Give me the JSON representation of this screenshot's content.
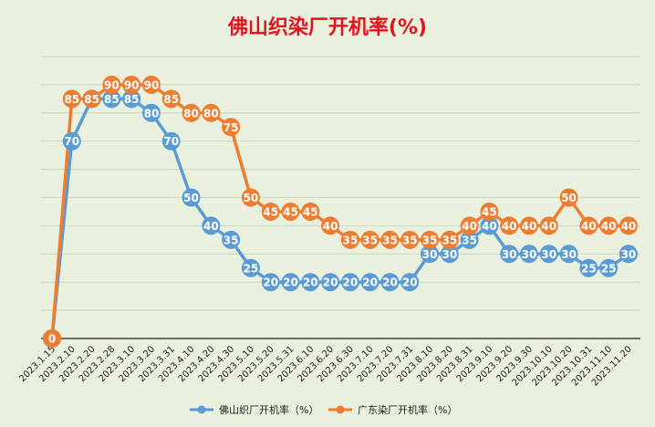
{
  "chart_data": {
    "type": "line",
    "title": "佛山织染厂开机率(%)",
    "xlabel": "",
    "ylabel": "",
    "ylim": [
      0,
      100
    ],
    "grid": true,
    "legend_position": "bottom",
    "categories": [
      "2023.1.15",
      "2023.2.10",
      "2023.2.20",
      "2023.2.28",
      "2023.3.10",
      "2023.3.20",
      "2023.3.31",
      "2023.4.10",
      "2023.4.20",
      "2023.4.30",
      "2023.5.10",
      "2023.5.20",
      "2023.5.31",
      "2023.6.10",
      "2023.6.20",
      "2023.6.30",
      "2023.7.10",
      "2023.7.20",
      "2023.7.31",
      "2023.8.10",
      "2023.8.20",
      "2023.8.31",
      "2023.9.10",
      "2023.9.20",
      "2023.9.30",
      "2023.10.10",
      "2023.10.20",
      "2023.10.31",
      "2023.11.10",
      "2023.11.20"
    ],
    "series": [
      {
        "name": "佛山织厂开机率（%）",
        "color": "#5b9bd5",
        "values": [
          0,
          70,
          85,
          85,
          85,
          80,
          70,
          50,
          40,
          35,
          25,
          20,
          20,
          20,
          20,
          20,
          20,
          20,
          20,
          30,
          30,
          35,
          40,
          30,
          30,
          30,
          30,
          25,
          25,
          30
        ]
      },
      {
        "name": "广东染厂开机率（%）",
        "color": "#ed7d31",
        "values": [
          0,
          85,
          85,
          90,
          90,
          90,
          85,
          80,
          80,
          75,
          50,
          45,
          45,
          45,
          40,
          35,
          35,
          35,
          35,
          35,
          35,
          40,
          45,
          40,
          40,
          40,
          50,
          40,
          40,
          40
        ]
      }
    ]
  }
}
